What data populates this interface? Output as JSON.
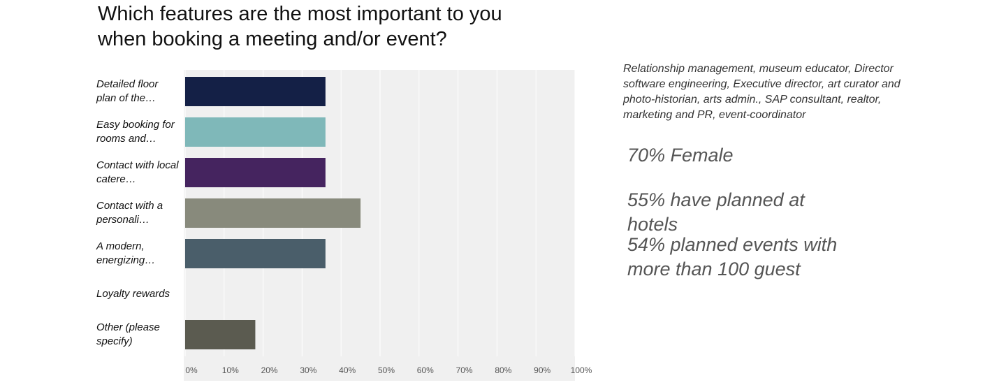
{
  "chart_data": {
    "type": "bar",
    "orientation": "horizontal",
    "title": "Which features are the most important to you when booking a meeting and/or event?",
    "categories": [
      "Detailed floor plan of the…",
      "Easy booking for rooms and…",
      "Contact with local catere…",
      "Contact with a personali…",
      "A modern, energizing…",
      "Loyalty rewards",
      "Other (please specify)"
    ],
    "values": [
      36,
      36,
      36,
      45,
      36,
      0,
      18
    ],
    "colors": [
      "#142046",
      "#7fb8b9",
      "#45245f",
      "#888a7c",
      "#4a5e6a",
      "#4a5e6a",
      "#5b5b50"
    ],
    "xlim": [
      0,
      100
    ],
    "xticks": [
      {
        "value": 0,
        "label": "0%"
      },
      {
        "value": 10,
        "label": "10%"
      },
      {
        "value": 20,
        "label": "20%"
      },
      {
        "value": 30,
        "label": "30%"
      },
      {
        "value": 40,
        "label": "40%"
      },
      {
        "value": 50,
        "label": "50%"
      },
      {
        "value": 60,
        "label": "60%"
      },
      {
        "value": 70,
        "label": "70%"
      },
      {
        "value": 80,
        "label": "80%"
      },
      {
        "value": 90,
        "label": "90%"
      },
      {
        "value": 100,
        "label": "100%"
      }
    ],
    "grid": true,
    "notes": "Relationship management, museum educator, Director software engineering, Executive director, art curator and photo-historian, arts admin., SAP consultant, realtor, marketing and PR, event-coordinator",
    "annotations": [
      "70% Female",
      "55% have planned at hotels",
      "54% planned events with more than 100 guest"
    ]
  }
}
